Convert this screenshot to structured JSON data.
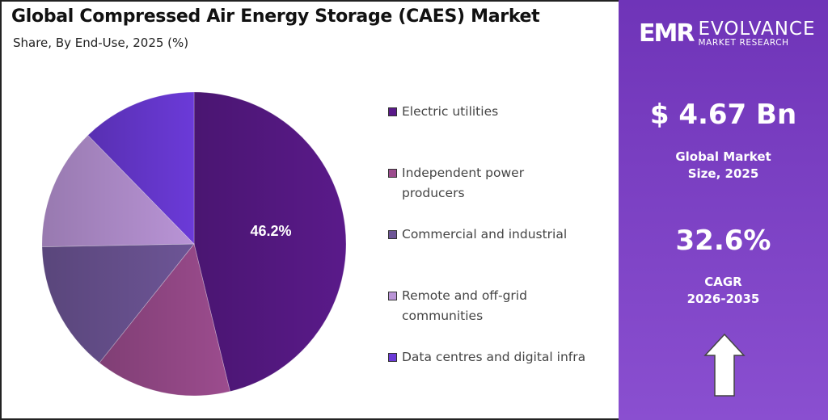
{
  "chart_data": {
    "type": "pie",
    "title": "Global Compressed Air Energy Storage (CAES) Market",
    "subtitle": "Share, By End-Use, 2025 (%)",
    "categories": [
      "Electric utilities",
      "Independent power producers",
      "Commercial and industrial",
      "Remote and off-grid communities",
      "Data centres and digital infra"
    ],
    "values": [
      46.2,
      14.5,
      14.0,
      13.0,
      12.3
    ],
    "data_labels": [
      "46.2%"
    ],
    "colors": [
      "#5a1a8a",
      "#9c4c8e",
      "#6d5596",
      "#b994d6",
      "#6b3ad8"
    ],
    "legend_position": "right"
  },
  "brand": {
    "logo_mark": "EMR",
    "name": "EVOLVANCE",
    "tagline": "MARKET RESEARCH"
  },
  "stats": {
    "market_size": "$ 4.67 Bn",
    "market_size_label_1": "Global Market",
    "market_size_label_2": "Size, 2025",
    "cagr": "32.6%",
    "cagr_label_1": "CAGR",
    "cagr_label_2": "2026-2035"
  },
  "icons": {
    "trend": "up-arrow-icon"
  }
}
